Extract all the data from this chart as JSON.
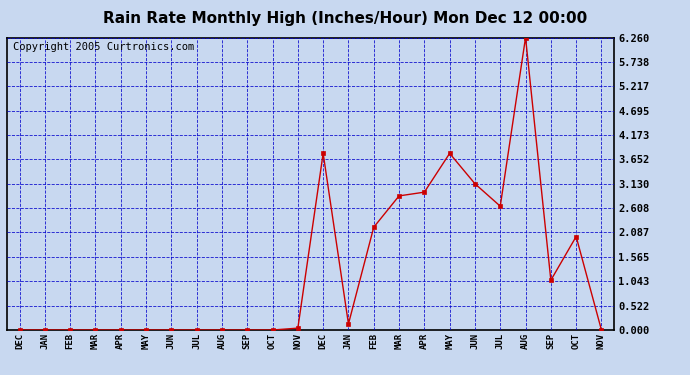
{
  "title": "Rain Rate Monthly High (Inches/Hour) Mon Dec 12 00:00",
  "copyright": "Copyright 2005 Curtronics.com",
  "months": [
    "DEC",
    "JAN",
    "FEB",
    "MAR",
    "APR",
    "MAY",
    "JUN",
    "JUL",
    "AUG",
    "SEP",
    "OCT",
    "NOV",
    "DEC",
    "JAN",
    "FEB",
    "MAR",
    "APR",
    "MAY",
    "JUN",
    "JUL",
    "AUG",
    "SEP",
    "OCT",
    "NOV"
  ],
  "values": [
    0.0,
    0.0,
    0.0,
    0.0,
    0.0,
    0.0,
    0.0,
    0.0,
    0.0,
    0.0,
    0.0,
    0.04,
    3.78,
    0.13,
    2.2,
    2.87,
    2.95,
    3.78,
    3.13,
    2.65,
    6.26,
    1.065,
    2.0,
    0.0
  ],
  "yticks": [
    0.0,
    0.522,
    1.043,
    1.565,
    2.087,
    2.608,
    3.13,
    3.652,
    4.173,
    4.695,
    5.217,
    5.738,
    6.26
  ],
  "ymax": 6.26,
  "line_color": "#cc0000",
  "marker_color": "#cc0000",
  "bg_color": "#c8d8f0",
  "plot_bg": "#c8d8f0",
  "grid_color": "#0000cc",
  "title_fontsize": 11,
  "copyright_fontsize": 7.5
}
